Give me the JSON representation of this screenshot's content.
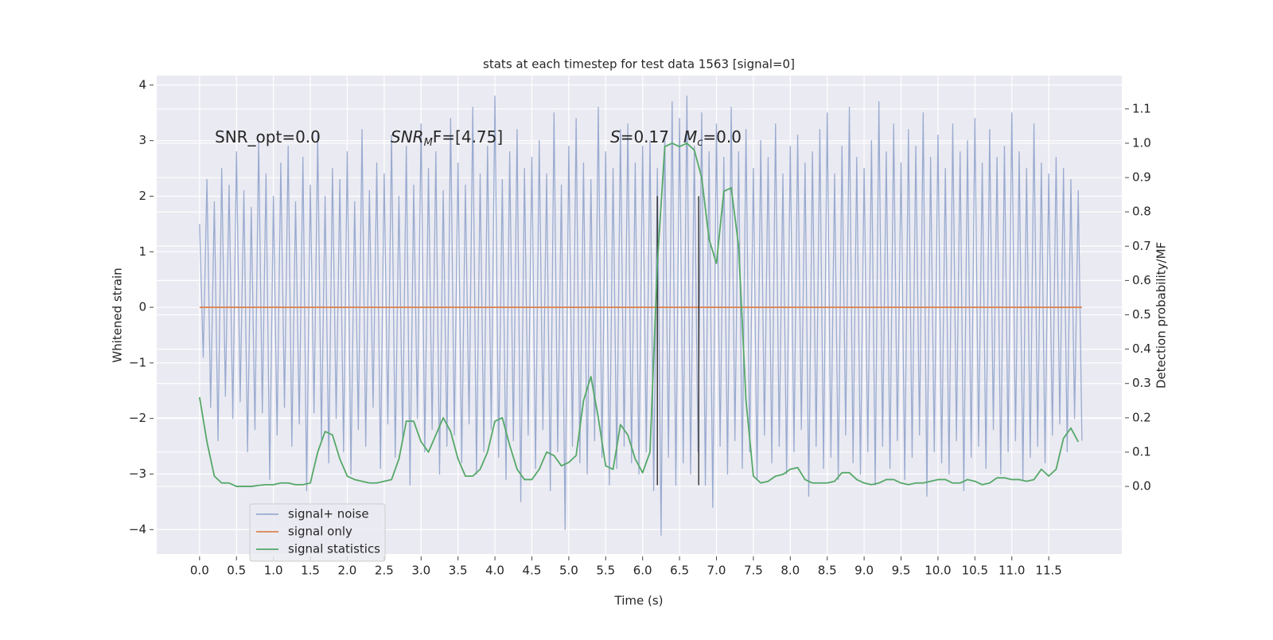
{
  "chart_data": {
    "type": "line",
    "title": "stats at each timestep for test data 1563 [signal=0]",
    "xlabel": "Time (s)",
    "ylabel": "Whitened strain",
    "y2label": "Detection probability/MF",
    "xlim": [
      -0.58,
      12.49
    ],
    "ylim": [
      -4.44,
      4.17
    ],
    "y2lim": [
      -0.197,
      1.197
    ],
    "xticks": [
      {
        "value": 0,
        "label": "0.0"
      },
      0.5,
      {
        "value": 1,
        "label": "1.0"
      },
      1.5,
      {
        "value": 2,
        "label": "2.0"
      },
      2.5,
      {
        "value": 3,
        "label": "3.0"
      },
      3.5,
      {
        "value": 4,
        "label": "4.0"
      },
      4.5,
      {
        "value": 5,
        "label": "5.0"
      },
      5.5,
      {
        "value": 6,
        "label": "6.0"
      },
      6.5,
      {
        "value": 7,
        "label": "7.0"
      },
      7.5,
      {
        "value": 8,
        "label": "8.0"
      },
      8.5,
      {
        "value": 9,
        "label": "9.0"
      },
      9.5,
      {
        "value": 10,
        "label": "10.0"
      },
      10.5,
      {
        "value": 11,
        "label": "11.0"
      },
      11.5
    ],
    "yticks": [
      {
        "value": -4,
        "label": "−4"
      },
      {
        "value": -3,
        "label": "−3"
      },
      {
        "value": -2,
        "label": "−2"
      },
      {
        "value": -1,
        "label": "−1"
      },
      0,
      1,
      2,
      3,
      4
    ],
    "y2ticks": [
      {
        "value": 0,
        "label": "0.0"
      },
      0.1,
      0.2,
      0.3,
      0.4,
      0.5,
      0.6,
      0.7,
      0.8,
      0.9,
      {
        "value": 1,
        "label": "1.0"
      },
      1.1
    ],
    "grid": true,
    "legend": "lower left",
    "annotations": [
      [
        "SNR_opt=0.0"
      ],
      [
        "SNR",
        {
          "sub": "M"
        },
        "F=[4.75]"
      ],
      [
        "S",
        "=0.17"
      ],
      [
        "M",
        {
          "sub": "c"
        },
        "=0.0"
      ]
    ],
    "vlines": [
      {
        "x": 6.2,
        "ymin": -3.2,
        "ymax": 2.0,
        "color": "#3a3a3a"
      },
      {
        "x": 6.76,
        "ymin": -3.2,
        "ymax": 2.0,
        "color": "#3a3a3a"
      }
    ],
    "series": [
      {
        "name": "signal+ noise",
        "color": "#9aabd0",
        "x": [
          0.0,
          0.05,
          0.1,
          0.15,
          0.2,
          0.25,
          0.3,
          0.35,
          0.4,
          0.45,
          0.5,
          0.55,
          0.6,
          0.65,
          0.7,
          0.75,
          0.8,
          0.85,
          0.9,
          0.95,
          1.0,
          1.05,
          1.1,
          1.15,
          1.2,
          1.25,
          1.3,
          1.35,
          1.4,
          1.45,
          1.5,
          1.55,
          1.6,
          1.65,
          1.7,
          1.75,
          1.8,
          1.85,
          1.9,
          1.95,
          2.0,
          2.05,
          2.1,
          2.15,
          2.2,
          2.25,
          2.3,
          2.35,
          2.4,
          2.45,
          2.5,
          2.55,
          2.6,
          2.65,
          2.7,
          2.75,
          2.8,
          2.85,
          2.9,
          2.95,
          3.0,
          3.05,
          3.1,
          3.15,
          3.2,
          3.25,
          3.3,
          3.35,
          3.4,
          3.45,
          3.5,
          3.55,
          3.6,
          3.65,
          3.7,
          3.75,
          3.8,
          3.85,
          3.9,
          3.95,
          4.0,
          4.05,
          4.1,
          4.15,
          4.2,
          4.25,
          4.3,
          4.35,
          4.4,
          4.45,
          4.5,
          4.55,
          4.6,
          4.65,
          4.7,
          4.75,
          4.8,
          4.85,
          4.9,
          4.95,
          5.0,
          5.05,
          5.1,
          5.15,
          5.2,
          5.25,
          5.3,
          5.35,
          5.4,
          5.45,
          5.5,
          5.55,
          5.6,
          5.65,
          5.7,
          5.75,
          5.8,
          5.85,
          5.9,
          5.95,
          6.0,
          6.05,
          6.1,
          6.15,
          6.2,
          6.25,
          6.3,
          6.35,
          6.4,
          6.45,
          6.5,
          6.55,
          6.6,
          6.65,
          6.7,
          6.75,
          6.8,
          6.85,
          6.9,
          6.95,
          7.0,
          7.05,
          7.1,
          7.15,
          7.2,
          7.25,
          7.3,
          7.35,
          7.4,
          7.45,
          7.5,
          7.55,
          7.6,
          7.65,
          7.7,
          7.75,
          7.8,
          7.85,
          7.9,
          7.95,
          8.0,
          8.05,
          8.1,
          8.15,
          8.2,
          8.25,
          8.3,
          8.35,
          8.4,
          8.45,
          8.5,
          8.55,
          8.6,
          8.65,
          8.7,
          8.75,
          8.8,
          8.85,
          8.9,
          8.95,
          9.0,
          9.05,
          9.1,
          9.15,
          9.2,
          9.25,
          9.3,
          9.35,
          9.4,
          9.45,
          9.5,
          9.55,
          9.6,
          9.65,
          9.7,
          9.75,
          9.8,
          9.85,
          9.9,
          9.95,
          10.0,
          10.05,
          10.1,
          10.15,
          10.2,
          10.25,
          10.3,
          10.35,
          10.4,
          10.45,
          10.5,
          10.55,
          10.6,
          10.65,
          10.7,
          10.75,
          10.8,
          10.85,
          10.9,
          10.95,
          11.0,
          11.05,
          11.1,
          11.15,
          11.2,
          11.25,
          11.3,
          11.35,
          11.4,
          11.45,
          11.5,
          11.55,
          11.6,
          11.65,
          11.7,
          11.75,
          11.8,
          11.85,
          11.9,
          11.95
        ],
        "values": [
          1.5,
          -0.9,
          2.3,
          -1.8,
          1.9,
          -2.4,
          2.5,
          -1.6,
          2.2,
          -2.0,
          2.8,
          -1.7,
          2.1,
          -2.6,
          1.8,
          -2.2,
          3.0,
          -1.9,
          2.4,
          -3.1,
          2.0,
          -2.3,
          2.6,
          -1.8,
          2.9,
          -2.5,
          1.9,
          -2.1,
          2.7,
          -3.3,
          2.2,
          -1.9,
          3.1,
          -2.4,
          2.0,
          -2.8,
          2.5,
          -2.0,
          2.3,
          -2.6,
          2.8,
          -3.0,
          1.9,
          -2.2,
          3.2,
          -2.5,
          2.1,
          -1.8,
          2.6,
          -2.9,
          2.4,
          -2.1,
          3.1,
          -2.7,
          2.0,
          -2.4,
          2.9,
          -3.2,
          2.2,
          -2.0,
          3.3,
          -2.6,
          2.5,
          -2.2,
          2.8,
          -3.0,
          2.1,
          -2.5,
          3.4,
          -2.3,
          2.6,
          -2.8,
          2.2,
          -2.1,
          3.6,
          -3.0,
          2.4,
          -2.6,
          2.9,
          -2.2,
          3.8,
          -2.7,
          2.3,
          -3.1,
          2.8,
          -2.4,
          3.2,
          -3.5,
          2.5,
          -2.3,
          2.7,
          -2.9,
          3.0,
          -2.2,
          2.4,
          -3.3,
          3.5,
          -2.6,
          2.2,
          -4.0,
          2.9,
          -2.5,
          3.4,
          -2.8,
          2.6,
          -3.0,
          2.3,
          -2.4,
          3.6,
          -2.7,
          2.8,
          -3.2,
          2.5,
          -2.9,
          3.2,
          -2.5,
          3.3,
          -2.8,
          2.6,
          -3.0,
          2.9,
          -2.6,
          3.0,
          -3.3,
          2.5,
          -4.1,
          3.1,
          -2.7,
          3.7,
          -3.2,
          3.4,
          -2.8,
          3.8,
          -3.0,
          2.9,
          -2.6,
          3.5,
          -3.2,
          2.8,
          -3.6,
          3.3,
          -2.5,
          2.7,
          -3.0,
          3.6,
          -2.4,
          2.8,
          -2.9,
          3.2,
          -2.6,
          2.5,
          -3.1,
          3.0,
          -2.3,
          2.7,
          -2.8,
          3.3,
          -2.5,
          2.4,
          -3.0,
          2.9,
          -2.6,
          3.1,
          -2.2,
          2.6,
          -3.4,
          2.8,
          -2.5,
          3.2,
          -2.9,
          3.5,
          -2.7,
          2.4,
          -3.1,
          2.9,
          -2.3,
          3.6,
          -2.8,
          2.7,
          -3.0,
          2.5,
          -2.6,
          3.0,
          -3.2,
          3.7,
          -2.5,
          2.8,
          -2.9,
          3.3,
          -2.4,
          2.6,
          -3.1,
          3.2,
          -2.7,
          2.9,
          -2.3,
          3.5,
          -3.4,
          2.7,
          -2.6,
          3.1,
          -2.8,
          2.5,
          -3.0,
          3.3,
          -2.4,
          2.8,
          -3.3,
          3.0,
          -2.7,
          3.4,
          -2.5,
          2.6,
          -2.9,
          3.2,
          -2.2,
          2.7,
          -3.0,
          2.9,
          -2.6,
          3.5,
          -2.4,
          2.8,
          -3.1,
          2.5,
          -2.7,
          3.3,
          -2.5,
          2.6,
          -2.8,
          2.4,
          -2.3,
          2.7,
          -2.1,
          2.5,
          -2.6,
          2.3,
          -2.0,
          2.1,
          -2.4
        ]
      },
      {
        "name": "signal only",
        "color": "#dd8452",
        "x": [
          0.0,
          11.95
        ],
        "values": [
          0,
          0
        ]
      },
      {
        "name": "signal statistics",
        "color": "#55a868",
        "axis": "y2",
        "x": [
          0.0,
          0.1,
          0.2,
          0.3,
          0.4,
          0.5,
          0.6,
          0.7,
          0.8,
          0.9,
          1.0,
          1.1,
          1.2,
          1.3,
          1.4,
          1.5,
          1.6,
          1.7,
          1.8,
          1.9,
          2.0,
          2.1,
          2.2,
          2.3,
          2.4,
          2.5,
          2.6,
          2.7,
          2.8,
          2.9,
          3.0,
          3.1,
          3.2,
          3.3,
          3.4,
          3.5,
          3.6,
          3.7,
          3.8,
          3.9,
          4.0,
          4.1,
          4.2,
          4.3,
          4.4,
          4.5,
          4.6,
          4.7,
          4.8,
          4.9,
          5.0,
          5.1,
          5.2,
          5.3,
          5.4,
          5.5,
          5.6,
          5.7,
          5.8,
          5.9,
          6.0,
          6.1,
          6.2,
          6.3,
          6.4,
          6.5,
          6.6,
          6.7,
          6.8,
          6.9,
          7.0,
          7.1,
          7.2,
          7.3,
          7.4,
          7.5,
          7.6,
          7.7,
          7.8,
          7.9,
          8.0,
          8.1,
          8.2,
          8.3,
          8.4,
          8.5,
          8.6,
          8.7,
          8.8,
          8.9,
          9.0,
          9.1,
          9.2,
          9.3,
          9.4,
          9.5,
          9.6,
          9.7,
          9.8,
          9.9,
          10.0,
          10.1,
          10.2,
          10.3,
          10.4,
          10.5,
          10.6,
          10.7,
          10.8,
          10.9,
          11.0,
          11.1,
          11.2,
          11.3,
          11.4,
          11.5,
          11.6,
          11.7,
          11.8,
          11.9
        ],
        "values": [
          0.26,
          0.13,
          0.03,
          0.01,
          0.01,
          0.0,
          0.0,
          0.0,
          0.003,
          0.005,
          0.005,
          0.01,
          0.01,
          0.005,
          0.005,
          0.01,
          0.1,
          0.16,
          0.15,
          0.08,
          0.03,
          0.02,
          0.015,
          0.01,
          0.01,
          0.015,
          0.02,
          0.08,
          0.19,
          0.19,
          0.13,
          0.1,
          0.15,
          0.2,
          0.16,
          0.08,
          0.03,
          0.03,
          0.05,
          0.1,
          0.19,
          0.2,
          0.12,
          0.05,
          0.02,
          0.02,
          0.05,
          0.1,
          0.09,
          0.06,
          0.07,
          0.09,
          0.25,
          0.32,
          0.2,
          0.06,
          0.05,
          0.18,
          0.15,
          0.08,
          0.04,
          0.1,
          0.65,
          0.99,
          1.0,
          0.99,
          1.0,
          0.98,
          0.9,
          0.72,
          0.65,
          0.86,
          0.87,
          0.7,
          0.25,
          0.03,
          0.01,
          0.015,
          0.03,
          0.035,
          0.05,
          0.055,
          0.02,
          0.01,
          0.01,
          0.01,
          0.015,
          0.04,
          0.04,
          0.02,
          0.01,
          0.005,
          0.01,
          0.02,
          0.02,
          0.01,
          0.005,
          0.01,
          0.01,
          0.015,
          0.02,
          0.02,
          0.01,
          0.01,
          0.02,
          0.015,
          0.005,
          0.01,
          0.025,
          0.025,
          0.02,
          0.02,
          0.015,
          0.02,
          0.05,
          0.03,
          0.05,
          0.14,
          0.17,
          0.13
        ]
      }
    ]
  }
}
